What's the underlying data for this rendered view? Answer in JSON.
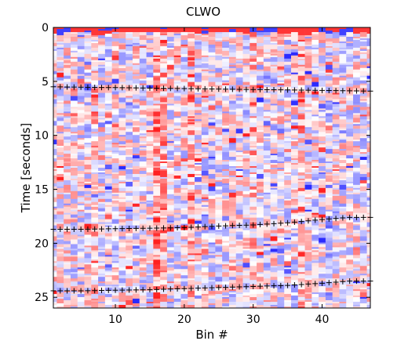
{
  "chart_data": {
    "type": "heatmap",
    "title": "CLWO",
    "xlabel": "Bin #",
    "ylabel": "Time [seconds]",
    "xlim": [
      1,
      47
    ],
    "ylim": [
      0,
      26
    ],
    "y_axis_reversed": true,
    "x_ticks": [
      10,
      20,
      30,
      40
    ],
    "x_tick_labels": [
      "10",
      "20",
      "30",
      "40"
    ],
    "y_ticks": [
      0,
      5,
      10,
      15,
      20,
      25
    ],
    "y_tick_labels": [
      "0",
      "5",
      "10",
      "15",
      "20",
      "25"
    ],
    "grid": false,
    "legend": "none",
    "colormap": [
      "#2b2bff",
      "#ffffff",
      "#ff2020"
    ],
    "value_range": [
      -1,
      1
    ],
    "pick_series": [
      {
        "type": "scatter",
        "marker": "+",
        "color": "#000000",
        "x": [
          1,
          47
        ],
        "y": [
          5.5,
          5.9
        ]
      },
      {
        "type": "scatter",
        "marker": "+",
        "color": "#000000",
        "x": [
          1,
          5,
          10,
          15,
          20,
          25,
          30,
          35,
          40,
          44,
          47
        ],
        "y": [
          18.7,
          18.7,
          18.65,
          18.6,
          18.55,
          18.4,
          18.3,
          18.1,
          17.8,
          17.6,
          17.6
        ]
      },
      {
        "type": "scatter",
        "marker": "+",
        "color": "#000000",
        "x": [
          1,
          5,
          10,
          15,
          20,
          25,
          30,
          35,
          40,
          44,
          47
        ],
        "y": [
          24.4,
          24.4,
          24.35,
          24.3,
          24.2,
          24.1,
          24.0,
          23.9,
          23.7,
          23.5,
          23.5
        ]
      }
    ],
    "column_bias": [
      {
        "bin": 7,
        "value": 0.3
      },
      {
        "bin": 16,
        "value": 0.6
      },
      {
        "bin": 17,
        "value": 0.4
      },
      {
        "bin": 21,
        "value": 0.55
      },
      {
        "bin": 30,
        "value": 0.35
      },
      {
        "bin": 37,
        "value": 0.4
      },
      {
        "bin": 41,
        "value": -0.15
      }
    ],
    "top_band": {
      "t_end": 0.35,
      "value": 0.9
    }
  }
}
